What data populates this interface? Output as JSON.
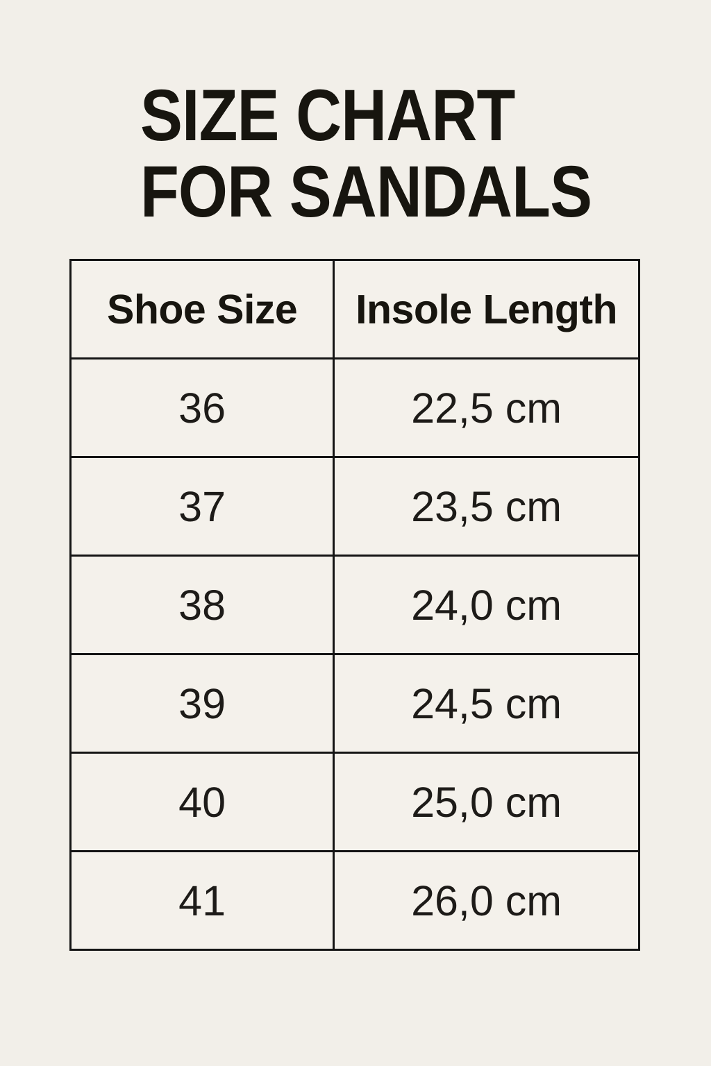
{
  "page": {
    "background_color": "#f2efe9",
    "text_color": "#1a1816",
    "border_color": "#141414"
  },
  "title": {
    "line1": "SIZE CHART",
    "line2": "FOR SANDALS"
  },
  "table": {
    "headers": {
      "shoe_size": "Shoe Size",
      "insole_length": "Insole Length"
    },
    "rows": [
      {
        "size": "36",
        "length": "22,5 cm"
      },
      {
        "size": "37",
        "length": "23,5 cm"
      },
      {
        "size": "38",
        "length": "24,0 cm"
      },
      {
        "size": "39",
        "length": "24,5 cm"
      },
      {
        "size": "40",
        "length": "25,0 cm"
      },
      {
        "size": "41",
        "length": "26,0 cm"
      }
    ]
  },
  "chart_data": {
    "type": "table",
    "title": "SIZE CHART FOR SANDALS",
    "columns": [
      "Shoe Size",
      "Insole Length"
    ],
    "rows": [
      [
        "36",
        "22,5 cm"
      ],
      [
        "37",
        "23,5 cm"
      ],
      [
        "38",
        "24,0 cm"
      ],
      [
        "39",
        "24,5 cm"
      ],
      [
        "40",
        "25,0 cm"
      ],
      [
        "41",
        "26,0 cm"
      ]
    ],
    "shoe_sizes": [
      36,
      37,
      38,
      39,
      40,
      41
    ],
    "insole_lengths_cm": [
      22.5,
      23.5,
      24.0,
      24.5,
      25.0,
      26.0
    ],
    "decimal_separator": ","
  }
}
